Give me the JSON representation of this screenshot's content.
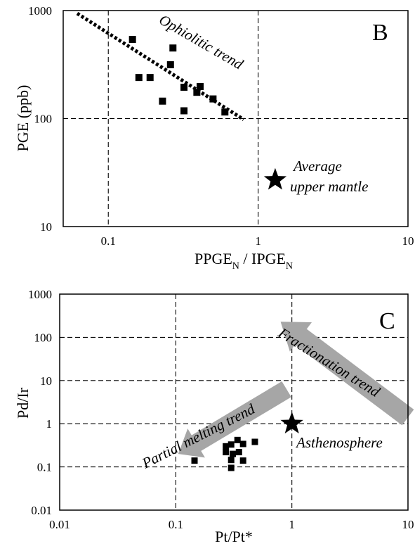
{
  "chart_data": [
    {
      "type": "scatter",
      "panel_label": "B",
      "xlabel": "PPGE",
      "xlabel_sub1": "N",
      "xlabel_mid": " / IPGE",
      "xlabel_sub2": "N",
      "ylabel": "PGE (ppb)",
      "x_scale": "log",
      "y_scale": "log",
      "xlim": [
        0.05,
        10
      ],
      "ylim": [
        10,
        1000
      ],
      "x_tick_values": [
        0.1,
        1,
        10
      ],
      "x_tick_labels": [
        "0.1",
        "1",
        "10"
      ],
      "y_tick_values": [
        10,
        100,
        1000
      ],
      "y_tick_labels": [
        "10",
        "100",
        "1000"
      ],
      "grid": "dashed at decades",
      "points": [
        {
          "x": 0.145,
          "y": 540
        },
        {
          "x": 0.27,
          "y": 450
        },
        {
          "x": 0.26,
          "y": 315
        },
        {
          "x": 0.16,
          "y": 240
        },
        {
          "x": 0.19,
          "y": 240
        },
        {
          "x": 0.32,
          "y": 195
        },
        {
          "x": 0.41,
          "y": 198
        },
        {
          "x": 0.39,
          "y": 175
        },
        {
          "x": 0.5,
          "y": 152
        },
        {
          "x": 0.23,
          "y": 145
        },
        {
          "x": 0.32,
          "y": 118
        },
        {
          "x": 0.6,
          "y": 115
        }
      ],
      "trend_line": {
        "label": "Ophiolitic trend",
        "from": {
          "x": 0.062,
          "y": 940
        },
        "to": {
          "x": 0.8,
          "y": 98
        }
      },
      "reference_point": {
        "label_line1": "Average",
        "label_line2": "upper mantle",
        "x": 1.3,
        "y": 27
      }
    },
    {
      "type": "scatter",
      "panel_label": "C",
      "xlabel": "Pt/Pt*",
      "ylabel": "Pd/Ir",
      "x_scale": "log",
      "y_scale": "log",
      "xlim": [
        0.01,
        10
      ],
      "ylim": [
        0.01,
        1000
      ],
      "x_tick_values": [
        0.01,
        0.1,
        1,
        10
      ],
      "x_tick_labels": [
        "0.01",
        "0.1",
        "1",
        "10"
      ],
      "y_tick_values": [
        0.01,
        0.1,
        1,
        10,
        100,
        1000
      ],
      "y_tick_labels": [
        "0.01",
        "0.1",
        "1",
        "10",
        "100",
        "1000"
      ],
      "grid": "dashed at decades",
      "points": [
        {
          "x": 0.145,
          "y": 0.14
        },
        {
          "x": 0.27,
          "y": 0.3
        },
        {
          "x": 0.3,
          "y": 0.33
        },
        {
          "x": 0.34,
          "y": 0.42
        },
        {
          "x": 0.38,
          "y": 0.34
        },
        {
          "x": 0.48,
          "y": 0.38
        },
        {
          "x": 0.27,
          "y": 0.22
        },
        {
          "x": 0.31,
          "y": 0.2
        },
        {
          "x": 0.35,
          "y": 0.22
        },
        {
          "x": 0.3,
          "y": 0.145
        },
        {
          "x": 0.38,
          "y": 0.14
        },
        {
          "x": 0.3,
          "y": 0.095
        }
      ],
      "reference_point": {
        "label": "Asthenosphere",
        "x": 1,
        "y": 1
      },
      "arrows": [
        {
          "label": "Partial melting trend",
          "from": {
            "x": 0.9,
            "y": 6.3
          },
          "to": {
            "x": 0.105,
            "y": 0.2
          }
        },
        {
          "label": "Fractionation trend",
          "from": {
            "x": 10,
            "y": 1.4
          },
          "to": {
            "x": 0.8,
            "y": 230
          }
        }
      ]
    }
  ]
}
